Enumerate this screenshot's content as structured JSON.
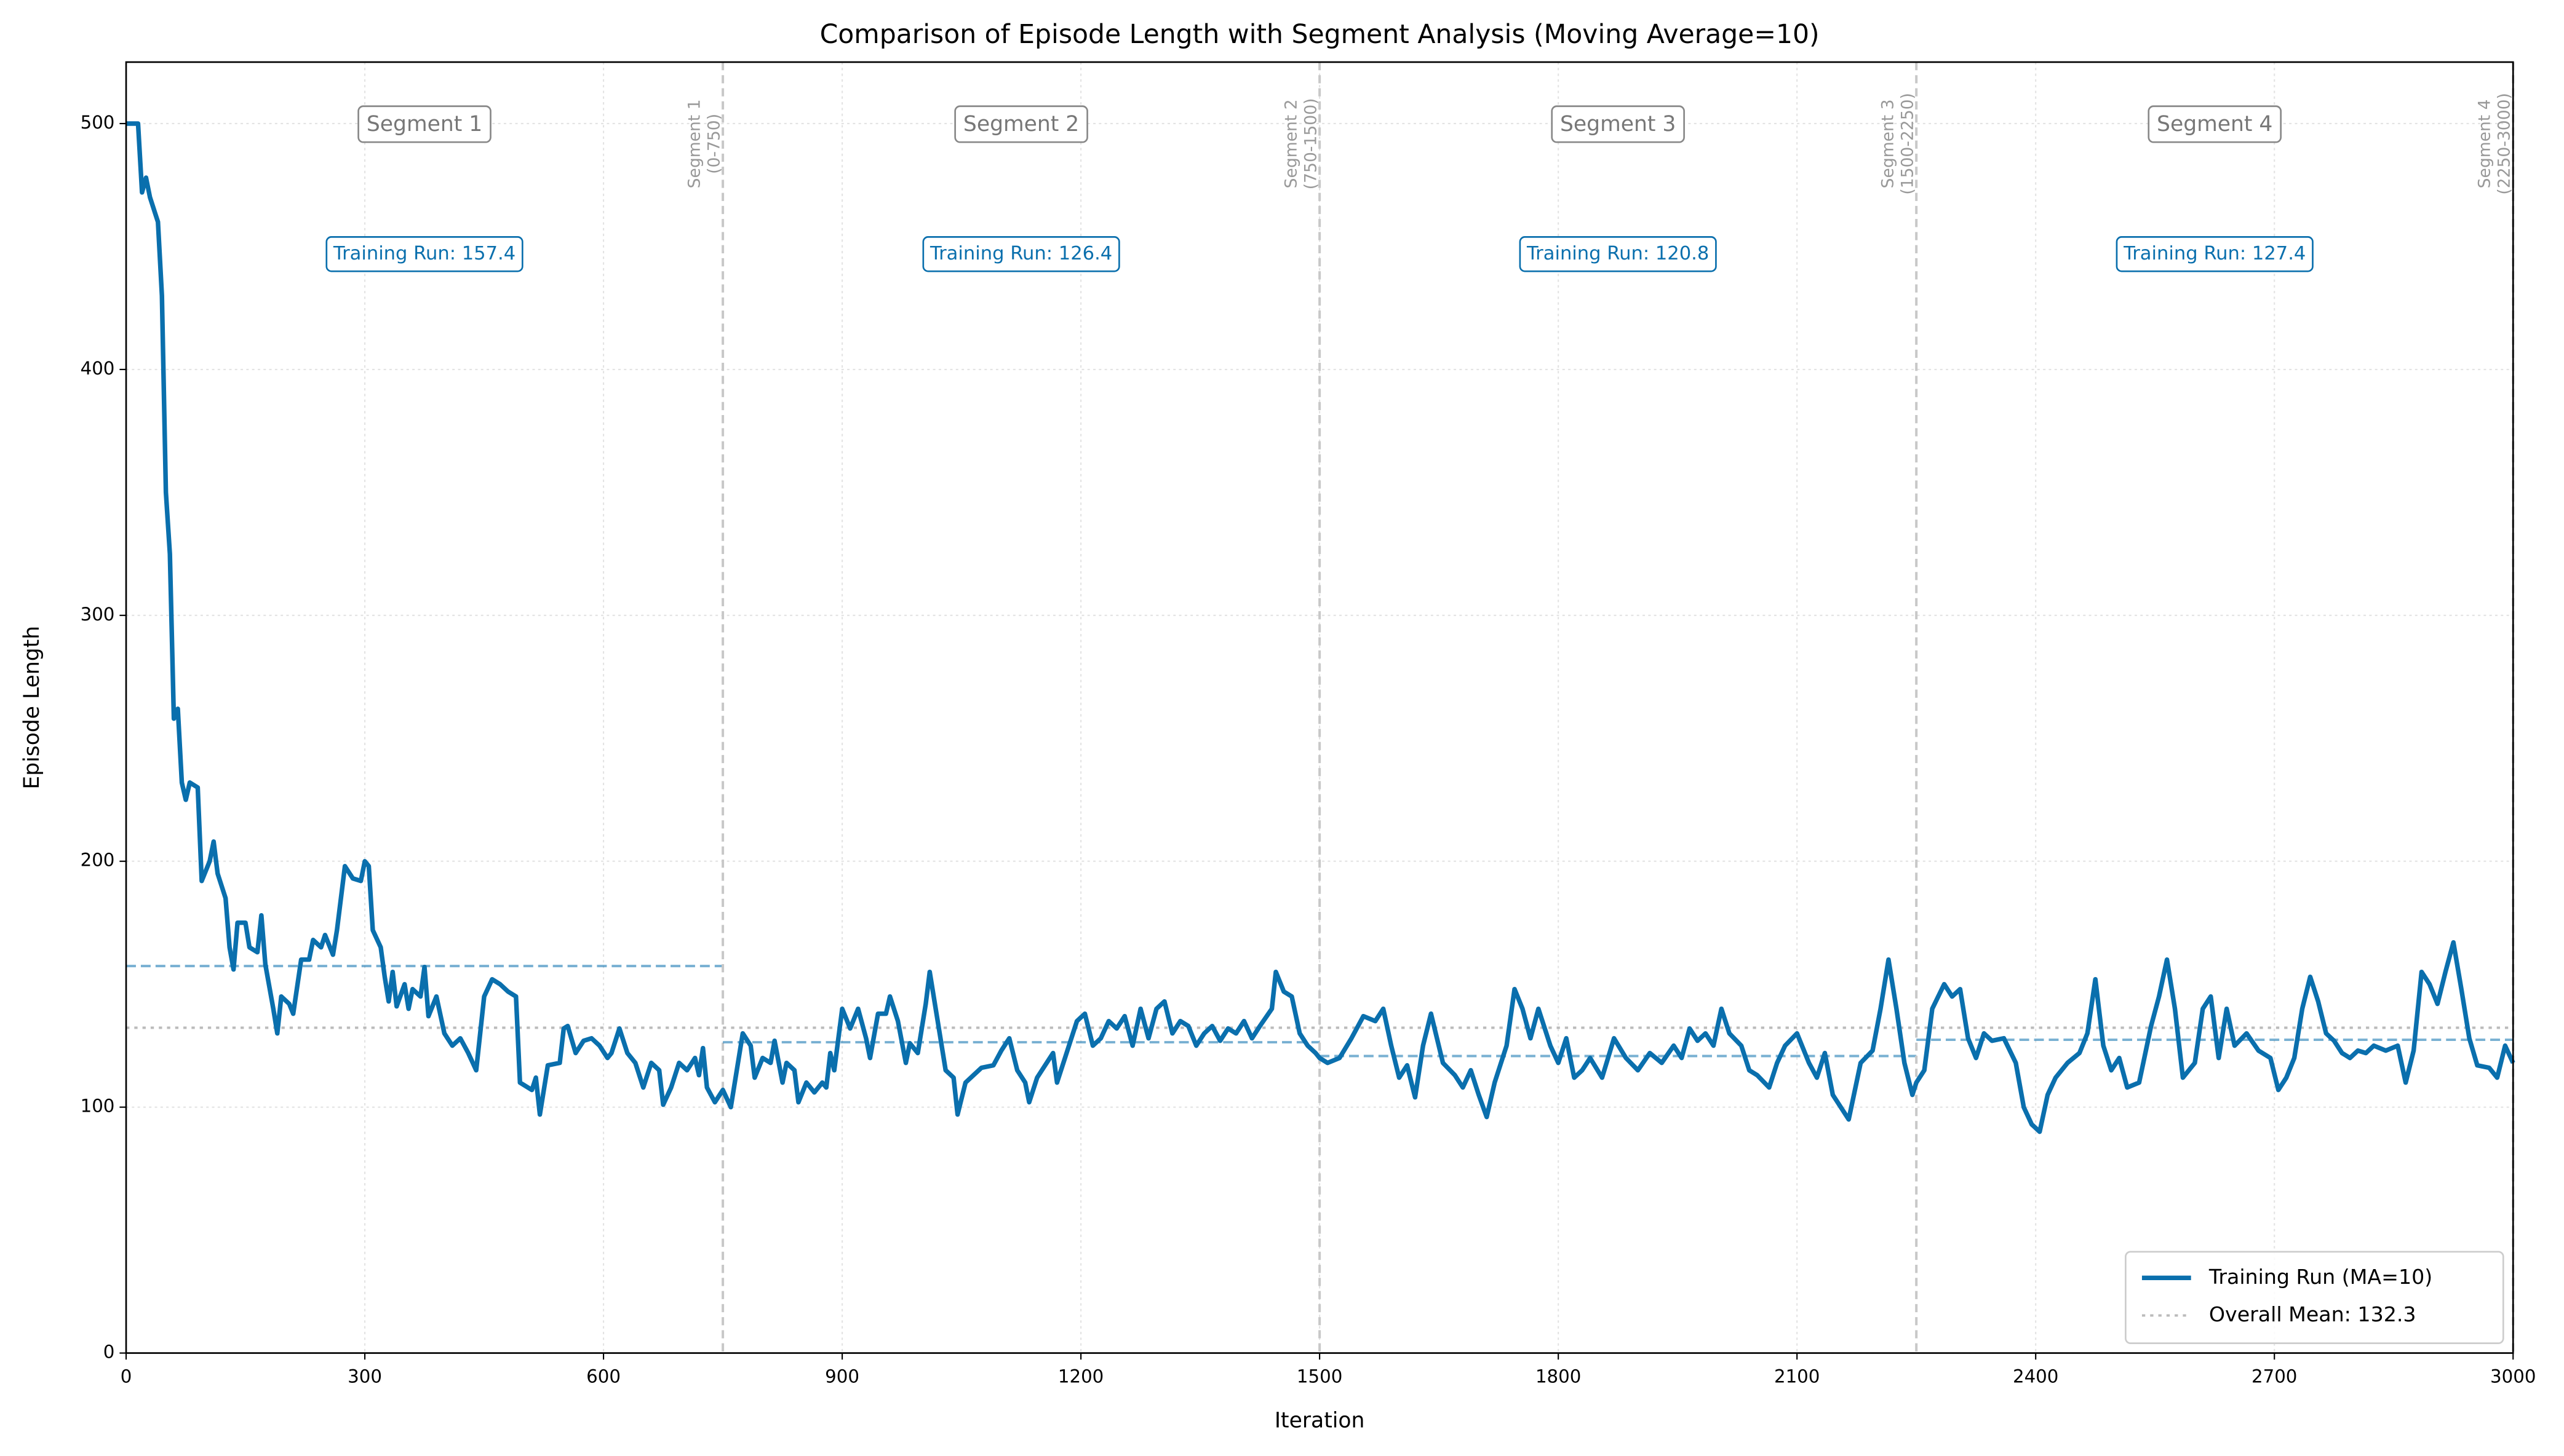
{
  "chart_data": {
    "type": "line",
    "title": "Comparison of Episode Length with Segment Analysis (Moving Average=10)",
    "x_label": "Iteration",
    "y_label": "Episode Length",
    "xlim": [
      0,
      3000
    ],
    "ylim": [
      0,
      525
    ],
    "xticks": [
      0,
      300,
      600,
      900,
      1200,
      1500,
      1800,
      2100,
      2400,
      2700,
      3000
    ],
    "yticks": [
      0,
      100,
      200,
      300,
      400,
      500
    ],
    "grid": true,
    "legend_position": "lower right",
    "x": [
      0,
      15,
      20,
      25,
      30,
      40,
      45,
      50,
      55,
      60,
      65,
      70,
      75,
      80,
      90,
      95,
      105,
      110,
      115,
      125,
      130,
      135,
      140,
      150,
      155,
      165,
      170,
      175,
      185,
      190,
      195,
      205,
      210,
      220,
      230,
      235,
      245,
      250,
      260,
      265,
      270,
      275,
      285,
      295,
      300,
      305,
      310,
      320,
      325,
      330,
      335,
      340,
      350,
      355,
      360,
      370,
      375,
      380,
      390,
      400,
      410,
      420,
      430,
      440,
      450,
      460,
      470,
      480,
      490,
      495,
      510,
      515,
      520,
      530,
      545,
      550,
      555,
      565,
      575,
      585,
      595,
      605,
      610,
      620,
      630,
      640,
      650,
      660,
      670,
      675,
      685,
      695,
      705,
      715,
      720,
      725,
      730,
      740,
      750,
      760,
      770,
      775,
      785,
      790,
      800,
      810,
      815,
      825,
      830,
      840,
      845,
      855,
      865,
      875,
      880,
      885,
      890,
      900,
      910,
      920,
      930,
      935,
      945,
      955,
      960,
      970,
      980,
      985,
      995,
      1005,
      1010,
      1020,
      1030,
      1040,
      1045,
      1055,
      1065,
      1075,
      1090,
      1100,
      1110,
      1120,
      1130,
      1135,
      1145,
      1155,
      1165,
      1170,
      1185,
      1195,
      1205,
      1215,
      1225,
      1235,
      1245,
      1255,
      1265,
      1275,
      1285,
      1295,
      1305,
      1315,
      1325,
      1335,
      1345,
      1355,
      1365,
      1375,
      1385,
      1395,
      1405,
      1415,
      1425,
      1440,
      1445,
      1455,
      1465,
      1475,
      1485,
      1495,
      1500,
      1510,
      1525,
      1540,
      1555,
      1570,
      1580,
      1590,
      1600,
      1610,
      1620,
      1630,
      1640,
      1655,
      1670,
      1680,
      1690,
      1700,
      1710,
      1720,
      1735,
      1745,
      1755,
      1765,
      1775,
      1790,
      1800,
      1810,
      1820,
      1830,
      1840,
      1855,
      1870,
      1885,
      1900,
      1915,
      1930,
      1945,
      1955,
      1965,
      1975,
      1985,
      1995,
      2005,
      2015,
      2030,
      2040,
      2050,
      2065,
      2075,
      2085,
      2100,
      2115,
      2125,
      2135,
      2145,
      2155,
      2165,
      2180,
      2195,
      2205,
      2215,
      2225,
      2235,
      2245,
      2250,
      2260,
      2270,
      2285,
      2295,
      2305,
      2315,
      2325,
      2335,
      2345,
      2360,
      2375,
      2385,
      2395,
      2405,
      2415,
      2425,
      2440,
      2455,
      2465,
      2475,
      2485,
      2495,
      2505,
      2515,
      2530,
      2545,
      2555,
      2565,
      2575,
      2585,
      2600,
      2610,
      2620,
      2630,
      2640,
      2650,
      2665,
      2680,
      2695,
      2705,
      2715,
      2725,
      2735,
      2745,
      2755,
      2765,
      2775,
      2785,
      2795,
      2805,
      2815,
      2825,
      2840,
      2855,
      2865,
      2875,
      2885,
      2895,
      2905,
      2915,
      2925,
      2935,
      2945,
      2955,
      2970,
      2980,
      2990,
      3000
    ],
    "series": [
      {
        "name": "Training Run (MA=10)",
        "color": "#0a6fad",
        "values": [
          500,
          500,
          472,
          478,
          470,
          460,
          430,
          350,
          325,
          258,
          262,
          232,
          225,
          232,
          230,
          192,
          200,
          208,
          195,
          185,
          165,
          156,
          175,
          175,
          165,
          163,
          178,
          158,
          140,
          130,
          145,
          142,
          138,
          160,
          160,
          168,
          165,
          170,
          162,
          172,
          185,
          198,
          193,
          192,
          200,
          198,
          172,
          165,
          153,
          143,
          155,
          141,
          150,
          140,
          148,
          145,
          157,
          137,
          145,
          130,
          125,
          128,
          122,
          115,
          145,
          152,
          150,
          147,
          145,
          110,
          107,
          112,
          97,
          117,
          118,
          132,
          133,
          122,
          127,
          128,
          125,
          120,
          122,
          132,
          122,
          118,
          108,
          118,
          115,
          101,
          108,
          118,
          115,
          120,
          113,
          124,
          108,
          102,
          107,
          100,
          120,
          130,
          125,
          112,
          120,
          118,
          127,
          110,
          118,
          115,
          102,
          110,
          106,
          110,
          108,
          122,
          115,
          140,
          132,
          140,
          128,
          120,
          138,
          138,
          145,
          135,
          118,
          126,
          122,
          142,
          155,
          135,
          115,
          112,
          97,
          110,
          113,
          116,
          117,
          123,
          128,
          115,
          110,
          102,
          112,
          117,
          122,
          110,
          125,
          135,
          138,
          125,
          128,
          135,
          132,
          137,
          125,
          140,
          128,
          140,
          143,
          130,
          135,
          133,
          125,
          130,
          133,
          127,
          132,
          130,
          135,
          128,
          133,
          140,
          155,
          147,
          145,
          130,
          125,
          122,
          120,
          118,
          120,
          128,
          137,
          135,
          140,
          125,
          112,
          117,
          104,
          125,
          138,
          118,
          113,
          108,
          115,
          105,
          96,
          110,
          125,
          148,
          140,
          128,
          140,
          125,
          118,
          128,
          112,
          115,
          120,
          112,
          128,
          120,
          115,
          122,
          118,
          125,
          120,
          132,
          127,
          130,
          125,
          140,
          130,
          125,
          115,
          113,
          108,
          118,
          125,
          130,
          118,
          112,
          122,
          105,
          100,
          95,
          118,
          123,
          140,
          160,
          140,
          118,
          105,
          110,
          115,
          140,
          150,
          145,
          148,
          128,
          120,
          130,
          127,
          128,
          118,
          100,
          93,
          90,
          105,
          112,
          118,
          122,
          130,
          152,
          125,
          115,
          120,
          108,
          110,
          133,
          145,
          160,
          140,
          112,
          118,
          140,
          145,
          120,
          140,
          125,
          130,
          123,
          120,
          107,
          112,
          120,
          140,
          153,
          143,
          130,
          127,
          122,
          120,
          123,
          122,
          125,
          123,
          125,
          110,
          123,
          155,
          150,
          142,
          155,
          167,
          148,
          128,
          117,
          116,
          112,
          125,
          118
        ]
      }
    ],
    "segments": [
      {
        "name": "Segment 1",
        "start": 0,
        "end": 750,
        "range_label": "(0-750)",
        "mean": 157.4,
        "mean_label": "Training Run: 157.4"
      },
      {
        "name": "Segment 2",
        "start": 750,
        "end": 1500,
        "range_label": "(750-1500)",
        "mean": 126.4,
        "mean_label": "Training Run: 126.4"
      },
      {
        "name": "Segment 3",
        "start": 1500,
        "end": 2250,
        "range_label": "(1500-2250)",
        "mean": 120.8,
        "mean_label": "Training Run: 120.8"
      },
      {
        "name": "Segment 4",
        "start": 2250,
        "end": 3000,
        "range_label": "(2250-3000)",
        "mean": 127.4,
        "mean_label": "Training Run: 127.4"
      }
    ],
    "mean_line": {
      "value": 132.3,
      "label": "Overall Mean: 132.3",
      "color": "#bbbbbb"
    }
  }
}
